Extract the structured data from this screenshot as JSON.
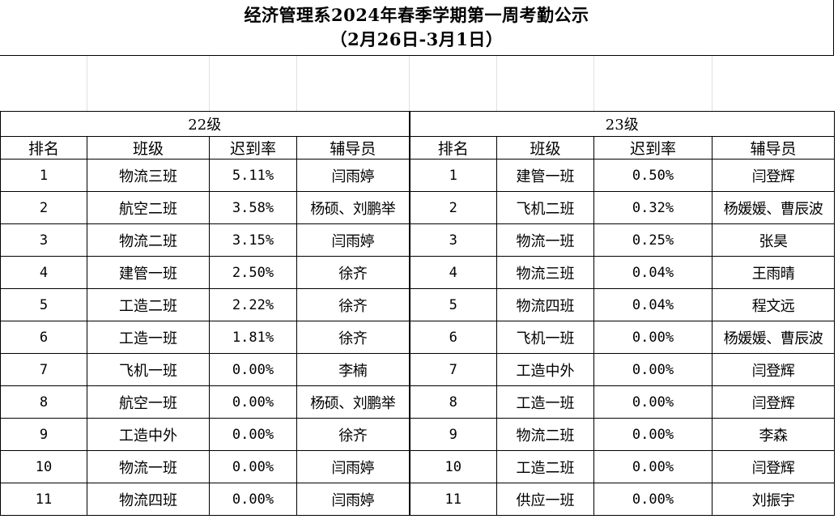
{
  "title": {
    "line1": "经济管理系2024年春季学期第一周考勤公示",
    "line2": "（2月26日-3月1日）"
  },
  "groups": {
    "left": "22级",
    "right": "23级"
  },
  "headers": [
    "排名",
    "班级",
    "迟到率",
    "辅导员",
    "排名",
    "班级",
    "迟到率",
    "辅导员"
  ],
  "rows": [
    [
      "1",
      "物流三班",
      "5.11%",
      "闫雨婷",
      "1",
      "建管一班",
      "0.50%",
      "闫登辉"
    ],
    [
      "2",
      "航空二班",
      "3.58%",
      "杨硕、刘鹏举",
      "2",
      "飞机二班",
      "0.32%",
      "杨媛媛、曹辰波"
    ],
    [
      "3",
      "物流二班",
      "3.15%",
      "闫雨婷",
      "3",
      "物流一班",
      "0.25%",
      "张昊"
    ],
    [
      "4",
      "建管一班",
      "2.50%",
      "徐齐",
      "4",
      "物流三班",
      "0.04%",
      "王雨晴"
    ],
    [
      "5",
      "工造二班",
      "2.22%",
      "徐齐",
      "5",
      "物流四班",
      "0.04%",
      "程文远"
    ],
    [
      "6",
      "工造一班",
      "1.81%",
      "徐齐",
      "6",
      "飞机一班",
      "0.00%",
      "杨媛媛、曹辰波"
    ],
    [
      "7",
      "飞机一班",
      "0.00%",
      "李楠",
      "7",
      "工造中外",
      "0.00%",
      "闫登辉"
    ],
    [
      "8",
      "航空一班",
      "0.00%",
      "杨硕、刘鹏举",
      "8",
      "工造一班",
      "0.00%",
      "闫登辉"
    ],
    [
      "9",
      "工造中外",
      "0.00%",
      "徐齐",
      "9",
      "物流二班",
      "0.00%",
      "李森"
    ],
    [
      "10",
      "物流一班",
      "0.00%",
      "闫雨婷",
      "10",
      "工造二班",
      "0.00%",
      "闫登辉"
    ],
    [
      "11",
      "物流四班",
      "0.00%",
      "闫雨婷",
      "11",
      "供应一班",
      "0.00%",
      "刘振宇"
    ]
  ]
}
